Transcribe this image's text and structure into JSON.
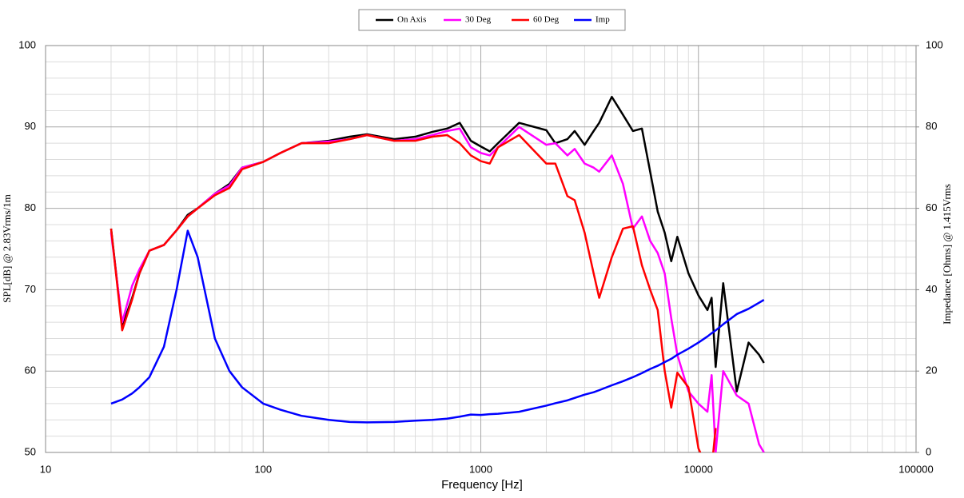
{
  "chart_data": {
    "type": "line",
    "xlabel": "Frequency [Hz]",
    "ylabel": "SPL[dB] @ 2.83Vrms/1m",
    "y2label": "Impedance [Ohms] @ 1.415Vrms",
    "xscale": "log",
    "grid": true,
    "legend": "top",
    "xlim": [
      10,
      100000
    ],
    "xticks": [
      10,
      100,
      1000,
      10000,
      100000
    ],
    "ylim": [
      50,
      100
    ],
    "yticks": [
      50,
      60,
      70,
      80,
      90,
      100
    ],
    "y2lim": [
      0,
      100
    ],
    "y2ticks": [
      0,
      20,
      40,
      60,
      80,
      100
    ],
    "x": [
      20,
      22.5,
      25,
      27,
      30,
      35,
      40,
      45,
      50,
      60,
      70,
      80,
      100,
      120,
      150,
      200,
      250,
      300,
      400,
      500,
      600,
      700,
      800,
      900,
      1000,
      1100,
      1200,
      1500,
      2000,
      2200,
      2500,
      2700,
      3000,
      3300,
      3500,
      4000,
      4500,
      5000,
      5500,
      6000,
      6500,
      7000,
      7500,
      8000,
      9000,
      10000,
      11000,
      11500,
      12000,
      13000,
      15000,
      17000,
      19000,
      20000
    ],
    "series": [
      {
        "name": "On Axis",
        "color": "#000000",
        "values": [
          77.5,
          65.5,
          69,
          72,
          74.8,
          75.5,
          77.3,
          79.2,
          80,
          81.8,
          83,
          85,
          85.7,
          86.8,
          88,
          88.3,
          88.8,
          89.1,
          88.5,
          88.8,
          89.4,
          89.8,
          90.5,
          88.3,
          87.6,
          87,
          88,
          90.5,
          89.6,
          88,
          88.5,
          89.5,
          87.8,
          89.5,
          90.5,
          93.7,
          91.5,
          89.5,
          89.8,
          84.5,
          79.6,
          77,
          73.5,
          76.5,
          72,
          69.3,
          67.5,
          69,
          60.5,
          70.8,
          57.5,
          63.5,
          62,
          61
        ]
      },
      {
        "name": "30 Deg",
        "color": "#ff00ff",
        "values": [
          77,
          66,
          70.5,
          72.5,
          74.8,
          75.5,
          77.3,
          79,
          80,
          81.8,
          82.8,
          85,
          85.7,
          86.8,
          88,
          88.2,
          88.5,
          89,
          88.3,
          88.5,
          89,
          89.5,
          89.8,
          87.5,
          86.8,
          86.5,
          87.5,
          90,
          87.8,
          88,
          86.5,
          87.3,
          85.5,
          85,
          84.5,
          86.5,
          83,
          77.5,
          79,
          76,
          74.5,
          72,
          66.5,
          62,
          57.5,
          56,
          55,
          59.5,
          50,
          60,
          57,
          56,
          51,
          50
        ]
      },
      {
        "name": "60 Deg",
        "color": "#ff0000",
        "values": [
          77.5,
          65,
          68.8,
          72,
          74.8,
          75.5,
          77.3,
          79,
          80,
          81.6,
          82.5,
          84.8,
          85.7,
          86.8,
          88,
          88,
          88.5,
          89,
          88.3,
          88.3,
          88.8,
          89,
          88,
          86.5,
          85.8,
          85.5,
          87.5,
          89,
          85.5,
          85.5,
          81.5,
          81,
          77,
          72,
          69,
          74,
          77.5,
          77.8,
          73,
          70,
          67.5,
          60,
          55.5,
          59.8,
          58,
          50.5,
          48,
          48,
          53,
          null,
          null,
          null,
          null,
          null
        ]
      },
      {
        "name": "Imp",
        "color": "#0000ff",
        "axis": "y2",
        "values": [
          12,
          13,
          14.5,
          16,
          18.5,
          26,
          40,
          54.5,
          48,
          28,
          20,
          16,
          12,
          10.5,
          9,
          8,
          7.5,
          7.4,
          7.5,
          7.8,
          8,
          8.3,
          8.8,
          9.3,
          9.2,
          9.4,
          9.5,
          10,
          11.5,
          12.1,
          12.8,
          13.4,
          14.2,
          14.8,
          15.3,
          16.5,
          17.5,
          18.5,
          19.5,
          20.5,
          21.3,
          22.2,
          23,
          24,
          25.5,
          27,
          28.5,
          29.3,
          30,
          31.5,
          34,
          35.3,
          36.8,
          37.5
        ]
      }
    ]
  }
}
